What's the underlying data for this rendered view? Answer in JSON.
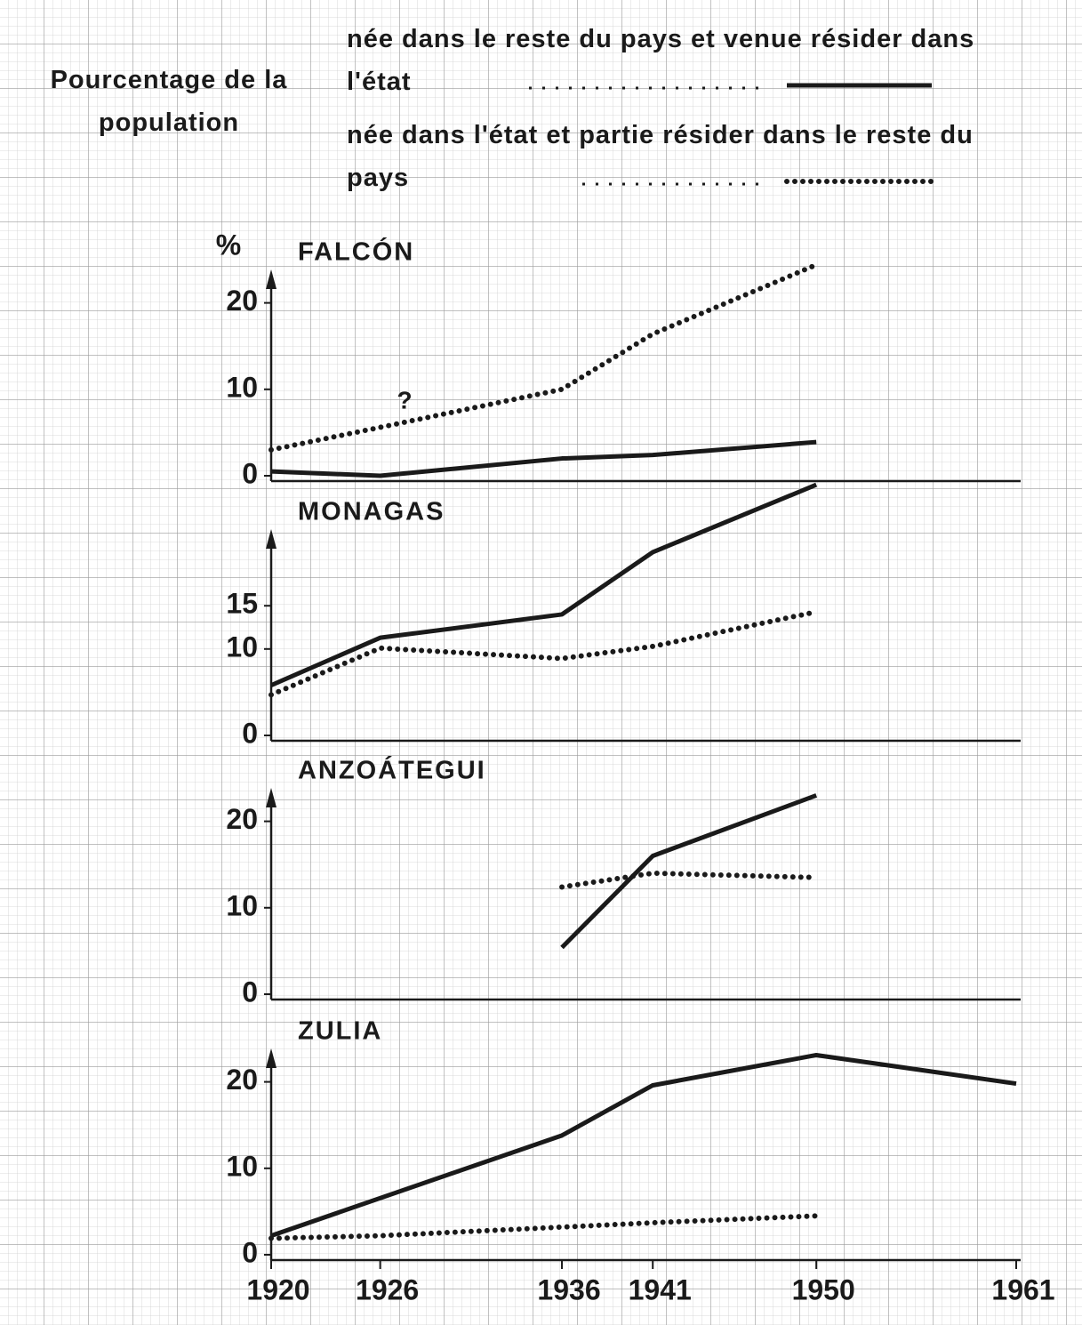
{
  "y_unit": "%",
  "y_label": "Pourcentage de la population",
  "legend": [
    {
      "name": "née dans le reste du pays et venue résider dans l'état",
      "style": "solid",
      "color": "#1a1a1a"
    },
    {
      "name": "née dans l'état et partie résider dans le reste du pays",
      "style": "dotted",
      "color": "#1a1a1a"
    }
  ],
  "x_axis": {
    "xlim": [
      1920,
      1961
    ],
    "xticks": [
      1920,
      1926,
      1936,
      1941,
      1950,
      1961
    ]
  },
  "chart_data": [
    {
      "type": "line",
      "title": "FALCÓN",
      "annotation": "?",
      "ylim": [
        0,
        25
      ],
      "yticks": [
        0,
        10,
        20
      ],
      "series": [
        {
          "x": [
            1920,
            1926,
            1936,
            1941,
            1950
          ],
          "values": [
            0.5,
            0,
            2,
            2.4,
            3.9
          ]
        },
        {
          "x": [
            1920,
            1926,
            1936,
            1941,
            1950
          ],
          "values": [
            3,
            5.6,
            10,
            16.4,
            24.4
          ]
        }
      ]
    },
    {
      "type": "line",
      "title": "MONAGAS",
      "ylim": [
        0,
        29
      ],
      "yticks": [
        0,
        10,
        15
      ],
      "series": [
        {
          "x": [
            1920,
            1926,
            1936,
            1941,
            1950
          ],
          "values": [
            5.8,
            11.3,
            14,
            21.2,
            29
          ]
        },
        {
          "x": [
            1920,
            1926,
            1936,
            1941,
            1950
          ],
          "values": [
            4.7,
            10.1,
            8.9,
            10.3,
            14.3
          ]
        }
      ]
    },
    {
      "type": "line",
      "title": "ANZOÁTEGUI",
      "ylim": [
        0,
        24
      ],
      "yticks": [
        0,
        10,
        20
      ],
      "series": [
        {
          "x": [
            1936,
            1941,
            1950
          ],
          "values": [
            5.4,
            16,
            23
          ]
        },
        {
          "x": [
            1936,
            1941,
            1950
          ],
          "values": [
            12.4,
            14,
            13.5
          ]
        }
      ]
    },
    {
      "type": "line",
      "title": "ZULIA",
      "ylim": [
        0,
        24
      ],
      "yticks": [
        0,
        10,
        20
      ],
      "series": [
        {
          "x": [
            1920,
            1936,
            1941,
            1950,
            1961
          ],
          "values": [
            2.2,
            13.8,
            19.6,
            23.1,
            19.8
          ]
        },
        {
          "x": [
            1920,
            1926,
            1936,
            1941,
            1950
          ],
          "values": [
            1.9,
            2.2,
            3.2,
            3.7,
            4.5
          ]
        }
      ]
    }
  ]
}
